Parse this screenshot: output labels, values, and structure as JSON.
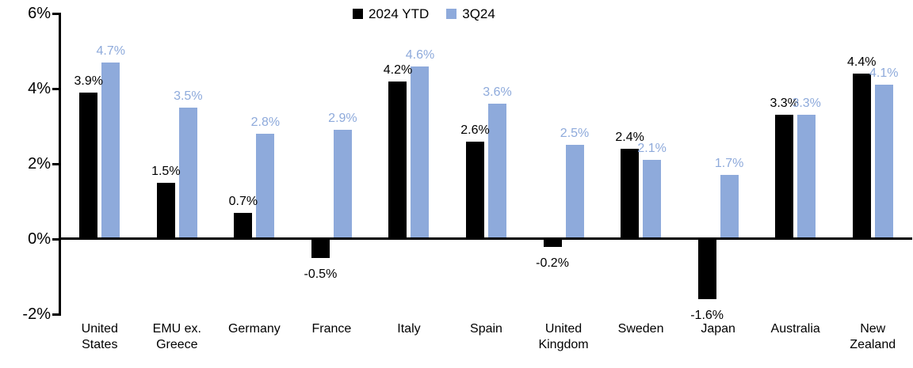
{
  "chart_data": {
    "type": "bar",
    "title": "",
    "categories": [
      "United\nStates",
      "EMU ex.\nGreece",
      "Germany",
      "France",
      "Italy",
      "Spain",
      "United\nKingdom",
      "Sweden",
      "Japan",
      "Australia",
      "New\nZealand"
    ],
    "series": [
      {
        "name": "2024 YTD",
        "color": "#000000",
        "values": [
          3.9,
          1.5,
          0.7,
          -0.5,
          4.2,
          2.6,
          -0.2,
          2.4,
          -1.6,
          3.3,
          4.4
        ]
      },
      {
        "name": "3Q24",
        "color": "#8EAADB",
        "values": [
          4.7,
          3.5,
          2.8,
          2.9,
          4.6,
          3.6,
          2.5,
          2.1,
          1.7,
          3.3,
          4.1
        ]
      }
    ],
    "value_suffix": "%",
    "ylim": [
      -2,
      6
    ],
    "ytick_step": 2,
    "ytick_labels": [
      "6%",
      "4%",
      "2%",
      "0%",
      "-2%"
    ],
    "grid": false,
    "data_labels": true,
    "legend_position": "top-center"
  }
}
